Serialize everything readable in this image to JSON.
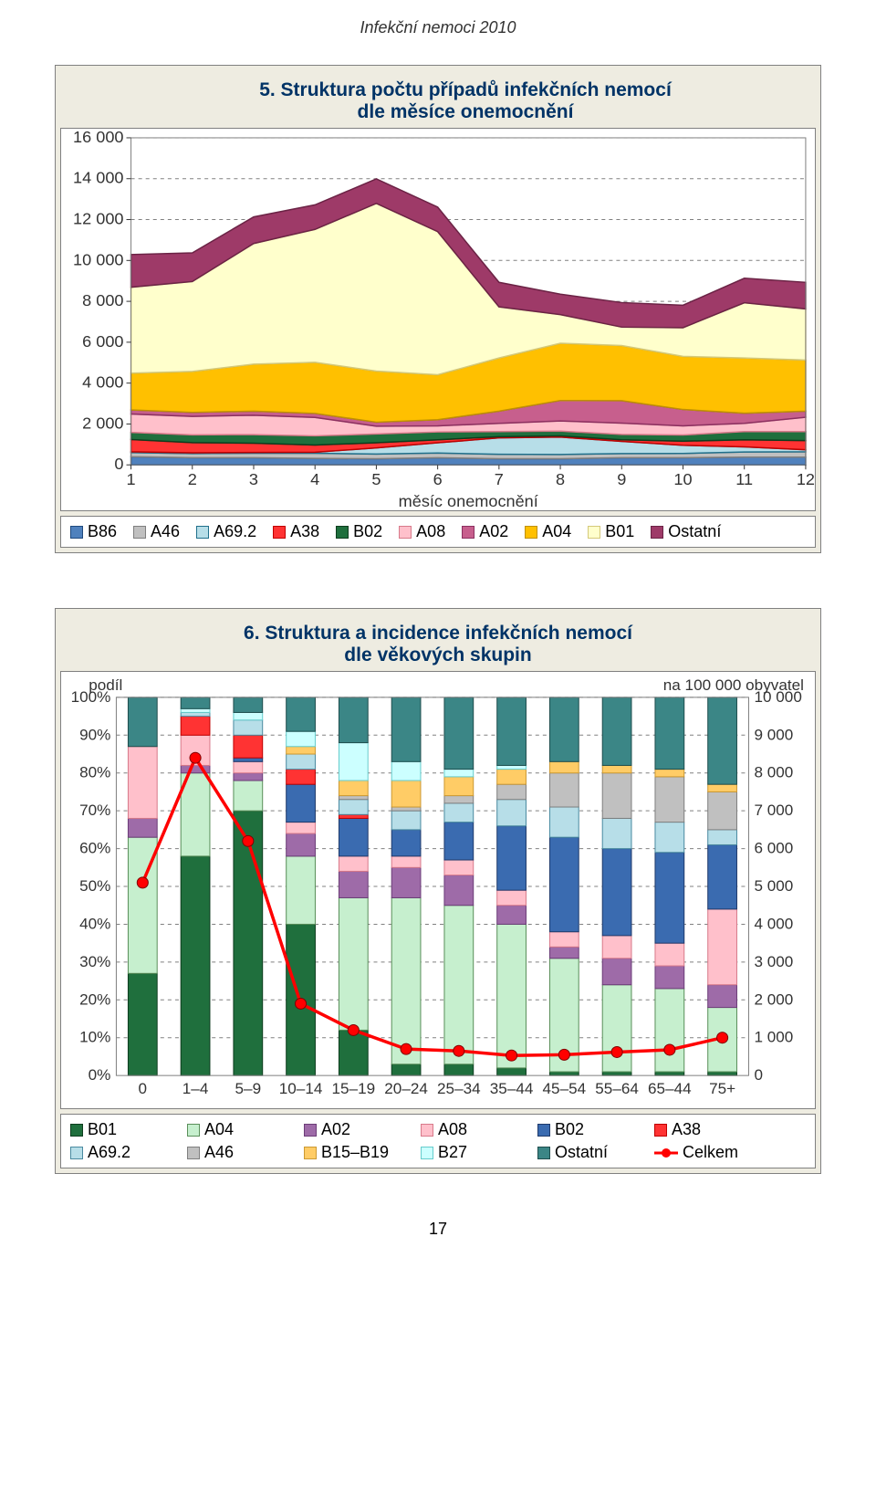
{
  "doc_title": "Infekční nemoci 2010",
  "page_number": "17",
  "chart5": {
    "title_line1": "5. Struktura počtu případů infekčních nemocí",
    "title_line2": "dle měsíce onemocnění",
    "type": "stacked-area",
    "background_color": "#eeece1",
    "plot_bg": "#ffffff",
    "grid_color": "#808080",
    "categories": [
      1,
      2,
      3,
      4,
      5,
      6,
      7,
      8,
      9,
      10,
      11,
      12
    ],
    "x_label": "měsíc onemocnění",
    "ylim": [
      0,
      16000
    ],
    "ytick_step": 2000,
    "ytick_labels": [
      "0",
      "2 000",
      "4 000",
      "6 000",
      "8 000",
      "10 000",
      "12 000",
      "14 000",
      "16 000"
    ],
    "tick_fontsize": 18,
    "series": [
      {
        "name": "B86",
        "color": "#4f81bd",
        "border": "#1f497d",
        "values": [
          400,
          350,
          350,
          320,
          300,
          350,
          300,
          300,
          350,
          350,
          380,
          380
        ]
      },
      {
        "name": "A46",
        "color": "#c0c0c0",
        "border": "#7f7f7f",
        "values": [
          200,
          200,
          220,
          250,
          230,
          230,
          220,
          210,
          200,
          210,
          250,
          260
        ]
      },
      {
        "name": "A69.2",
        "color": "#b7dee8",
        "border": "#1f6f8b",
        "values": [
          40,
          40,
          40,
          50,
          300,
          500,
          800,
          850,
          600,
          400,
          250,
          100
        ]
      },
      {
        "name": "A38",
        "color": "#ff3333",
        "border": "#c00000",
        "values": [
          600,
          500,
          450,
          350,
          250,
          150,
          60,
          60,
          80,
          200,
          350,
          450
        ]
      },
      {
        "name": "B02",
        "color": "#1f6f3d",
        "border": "#0d3d1e",
        "values": [
          350,
          380,
          420,
          450,
          430,
          380,
          250,
          230,
          260,
          300,
          400,
          440
        ]
      },
      {
        "name": "A08",
        "color": "#ffc0cb",
        "border": "#d87a8a",
        "values": [
          900,
          900,
          950,
          900,
          380,
          300,
          400,
          500,
          550,
          450,
          400,
          700
        ]
      },
      {
        "name": "A02",
        "color": "#c75f8d",
        "border": "#8b3060",
        "values": [
          200,
          200,
          200,
          200,
          200,
          300,
          600,
          1000,
          1100,
          800,
          500,
          300
        ]
      },
      {
        "name": "A04",
        "color": "#ffc000",
        "border": "#bf9000",
        "values": [
          1800,
          2000,
          2300,
          2500,
          2500,
          2200,
          2600,
          2800,
          2700,
          2600,
          2700,
          2500
        ]
      },
      {
        "name": "B01",
        "color": "#ffffcc",
        "border": "#d4c97a",
        "values": [
          4200,
          4400,
          5900,
          6500,
          8200,
          7000,
          2500,
          1400,
          900,
          1400,
          2700,
          2500
        ]
      },
      {
        "name": "Ostatní",
        "color": "#9e3a68",
        "border": "#6b2345",
        "values": [
          1600,
          1400,
          1300,
          1200,
          1200,
          1200,
          1200,
          1000,
          1200,
          1100,
          1200,
          1300
        ]
      }
    ],
    "legend_order": [
      "B86",
      "A46",
      "A69.2",
      "A38",
      "B02",
      "A08",
      "A02",
      "A04",
      "B01",
      "Ostatní"
    ]
  },
  "chart6": {
    "title_line1": "6. Struktura a incidence infekčních nemocí",
    "title_line2": "dle věkových skupin",
    "type": "stacked-bar-with-line",
    "y1_label": "podíl",
    "y2_label": "na 100 000 obyvatel",
    "background_color": "#eeece1",
    "plot_bg": "#ffffff",
    "grid_color": "#808080",
    "categories": [
      "0",
      "1–4",
      "5–9",
      "10–14",
      "15–19",
      "20–24",
      "25–34",
      "35–44",
      "45–54",
      "55–64",
      "65–44",
      "75+"
    ],
    "y1_lim": [
      0,
      100
    ],
    "y1_tick_step": 10,
    "y1_tick_labels": [
      "0%",
      "10%",
      "20%",
      "30%",
      "40%",
      "50%",
      "60%",
      "70%",
      "80%",
      "90%",
      "100%"
    ],
    "y2_lim": [
      0,
      10000
    ],
    "y2_tick_step": 1000,
    "y2_tick_labels": [
      "0",
      "1 000",
      "2 000",
      "3 000",
      "4 000",
      "5 000",
      "6 000",
      "7 000",
      "8 000",
      "9 000",
      "10 000"
    ],
    "tick_fontsize": 17,
    "bar_width": 0.55,
    "bar_series": [
      {
        "name": "B01",
        "color": "#1f6f3d",
        "border": "#0d3d1e",
        "values": [
          27,
          58,
          70,
          40,
          12,
          3,
          3,
          2,
          1,
          1,
          1,
          1
        ]
      },
      {
        "name": "A04",
        "color": "#c6efce",
        "border": "#5a8f5a",
        "values": [
          36,
          22,
          8,
          18,
          35,
          44,
          42,
          38,
          30,
          23,
          22,
          17
        ]
      },
      {
        "name": "A02",
        "color": "#9e6ba8",
        "border": "#6b3c77",
        "values": [
          5,
          2,
          2,
          6,
          7,
          8,
          8,
          5,
          3,
          7,
          6,
          6
        ]
      },
      {
        "name": "A08",
        "color": "#ffc0cb",
        "border": "#d87a8a",
        "values": [
          19,
          8,
          3,
          3,
          4,
          3,
          4,
          4,
          4,
          6,
          6,
          20
        ]
      },
      {
        "name": "B02",
        "color": "#3a6bb0",
        "border": "#1f3a6b",
        "values": [
          0,
          0,
          1,
          10,
          10,
          7,
          10,
          17,
          25,
          23,
          24,
          17
        ]
      },
      {
        "name": "A38",
        "color": "#ff3333",
        "border": "#c00000",
        "values": [
          0,
          5,
          6,
          4,
          1,
          0,
          0,
          0,
          0,
          0,
          0,
          0
        ]
      },
      {
        "name": "A69.2",
        "color": "#b7dee8",
        "border": "#4a8aa0",
        "values": [
          0,
          1,
          4,
          4,
          4,
          5,
          5,
          7,
          8,
          8,
          8,
          4
        ]
      },
      {
        "name": "A46",
        "color": "#c0c0c0",
        "border": "#7f7f7f",
        "values": [
          0,
          0,
          0,
          0,
          1,
          1,
          2,
          4,
          9,
          12,
          12,
          10
        ]
      },
      {
        "name": "B15–B19",
        "color": "#ffcc66",
        "border": "#cc9933",
        "values": [
          0,
          0,
          0,
          2,
          4,
          7,
          5,
          4,
          3,
          2,
          2,
          2
        ]
      },
      {
        "name": "B27",
        "color": "#ccffff",
        "border": "#66cccc",
        "values": [
          0,
          1,
          2,
          4,
          10,
          5,
          2,
          1,
          0,
          0,
          0,
          0
        ]
      },
      {
        "name": "Ostatní",
        "color": "#3b8686",
        "border": "#1e4d4d",
        "values": [
          13,
          3,
          4,
          9,
          12,
          17,
          19,
          18,
          17,
          18,
          19,
          23
        ]
      }
    ],
    "line_series": {
      "name": "Celkem",
      "color": "#ff0000",
      "marker_color": "#ff0000",
      "values": [
        5100,
        8400,
        6200,
        1900,
        1200,
        700,
        650,
        530,
        550,
        620,
        680,
        1000
      ]
    },
    "legend_order_row1": [
      "B01",
      "A04",
      "A02",
      "A08",
      "B02",
      "A38"
    ],
    "legend_order_row2": [
      "A69.2",
      "A46",
      "B15–B19",
      "B27",
      "Ostatní",
      "Celkem"
    ]
  }
}
